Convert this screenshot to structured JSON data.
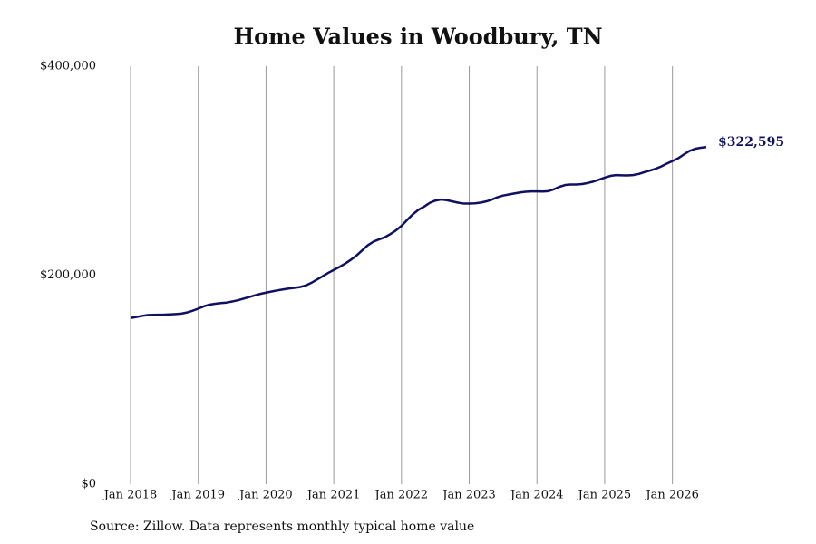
{
  "chart_data": {
    "type": "line",
    "title": "Home Values in Woodbury, TN",
    "source": "Source: Zillow. Data represents monthly typical home value",
    "grid": "x",
    "xlim": [
      "2018-01",
      "2026-07"
    ],
    "xticks": [
      {
        "value": "2018-01",
        "label": "Jan 2018"
      },
      {
        "value": "2019-01",
        "label": "Jan 2019"
      },
      {
        "value": "2020-01",
        "label": "Jan 2020"
      },
      {
        "value": "2021-01",
        "label": "Jan 2021"
      },
      {
        "value": "2022-01",
        "label": "Jan 2022"
      },
      {
        "value": "2023-01",
        "label": "Jan 2023"
      },
      {
        "value": "2024-01",
        "label": "Jan 2024"
      },
      {
        "value": "2025-01",
        "label": "Jan 2025"
      },
      {
        "value": "2026-01",
        "label": "Jan 2026"
      }
    ],
    "ylim": [
      0,
      400000
    ],
    "yticks": [
      {
        "value": 0,
        "label": "$0"
      },
      {
        "value": 200000,
        "label": "$200,000"
      },
      {
        "value": 400000,
        "label": "$400,000"
      }
    ],
    "x": [
      "2018-01",
      "2018-02",
      "2018-03",
      "2018-04",
      "2018-05",
      "2018-06",
      "2018-07",
      "2018-08",
      "2018-09",
      "2018-10",
      "2018-11",
      "2018-12",
      "2019-01",
      "2019-02",
      "2019-03",
      "2019-04",
      "2019-05",
      "2019-06",
      "2019-07",
      "2019-08",
      "2019-09",
      "2019-10",
      "2019-11",
      "2019-12",
      "2020-01",
      "2020-02",
      "2020-03",
      "2020-04",
      "2020-05",
      "2020-06",
      "2020-07",
      "2020-08",
      "2020-09",
      "2020-10",
      "2020-11",
      "2020-12",
      "2021-01",
      "2021-02",
      "2021-03",
      "2021-04",
      "2021-05",
      "2021-06",
      "2021-07",
      "2021-08",
      "2021-09",
      "2021-10",
      "2021-11",
      "2021-12",
      "2022-01",
      "2022-02",
      "2022-03",
      "2022-04",
      "2022-05",
      "2022-06",
      "2022-07",
      "2022-08",
      "2022-09",
      "2022-10",
      "2022-11",
      "2022-12",
      "2023-01",
      "2023-02",
      "2023-03",
      "2023-04",
      "2023-05",
      "2023-06",
      "2023-07",
      "2023-08",
      "2023-09",
      "2023-10",
      "2023-11",
      "2023-12",
      "2024-01",
      "2024-02",
      "2024-03",
      "2024-04",
      "2024-05",
      "2024-06",
      "2024-07",
      "2024-08",
      "2024-09",
      "2024-10",
      "2024-11",
      "2024-12",
      "2025-01",
      "2025-02",
      "2025-03",
      "2025-04",
      "2025-05",
      "2025-06",
      "2025-07",
      "2025-08",
      "2025-09",
      "2025-10",
      "2025-11",
      "2025-12",
      "2026-01",
      "2026-02",
      "2026-03",
      "2026-04",
      "2026-05",
      "2026-06",
      "2026-07"
    ],
    "series": [
      {
        "color": "#101060",
        "values": [
          159000,
          160000,
          161000,
          161800,
          162000,
          162100,
          162200,
          162500,
          162800,
          163200,
          164300,
          166000,
          168000,
          170200,
          171800,
          172700,
          173300,
          173800,
          174800,
          176000,
          177500,
          179000,
          180600,
          182100,
          183300,
          184400,
          185400,
          186300,
          187200,
          187900,
          188600,
          190000,
          192600,
          195700,
          198900,
          202100,
          205000,
          207800,
          211000,
          214600,
          218600,
          223600,
          228500,
          232000,
          234200,
          236200,
          239200,
          242800,
          247200,
          252800,
          258200,
          262600,
          265600,
          269200,
          271400,
          272400,
          271800,
          270600,
          269400,
          268600,
          268600,
          268800,
          269400,
          270600,
          272300,
          274600,
          276200,
          277200,
          278200,
          279200,
          279800,
          280200,
          280200,
          280000,
          280400,
          282200,
          284600,
          286300,
          286800,
          286800,
          287200,
          288200,
          289600,
          291400,
          293300,
          295000,
          295800,
          295600,
          295400,
          295800,
          296800,
          298500,
          300100,
          301800,
          304000,
          306700,
          309200,
          311800,
          315400,
          318800,
          320900,
          321900,
          322595
        ],
        "value_labels": [
          null,
          null,
          null,
          null,
          null,
          null,
          null,
          null,
          null,
          null,
          null,
          null,
          null,
          null,
          null,
          null,
          null,
          null,
          null,
          null,
          null,
          null,
          null,
          null,
          null,
          null,
          null,
          null,
          null,
          null,
          null,
          null,
          null,
          null,
          null,
          null,
          null,
          null,
          null,
          null,
          null,
          null,
          null,
          null,
          null,
          null,
          null,
          null,
          null,
          null,
          null,
          null,
          null,
          null,
          null,
          null,
          null,
          null,
          null,
          null,
          null,
          null,
          null,
          null,
          null,
          null,
          null,
          null,
          null,
          null,
          null,
          null,
          null,
          null,
          null,
          null,
          null,
          null,
          null,
          null,
          null,
          null,
          null,
          null,
          null,
          null,
          null,
          null,
          null,
          null,
          null,
          null,
          null,
          null,
          null,
          null,
          null,
          null,
          null,
          null,
          null,
          null,
          "$322,595"
        ]
      }
    ]
  }
}
